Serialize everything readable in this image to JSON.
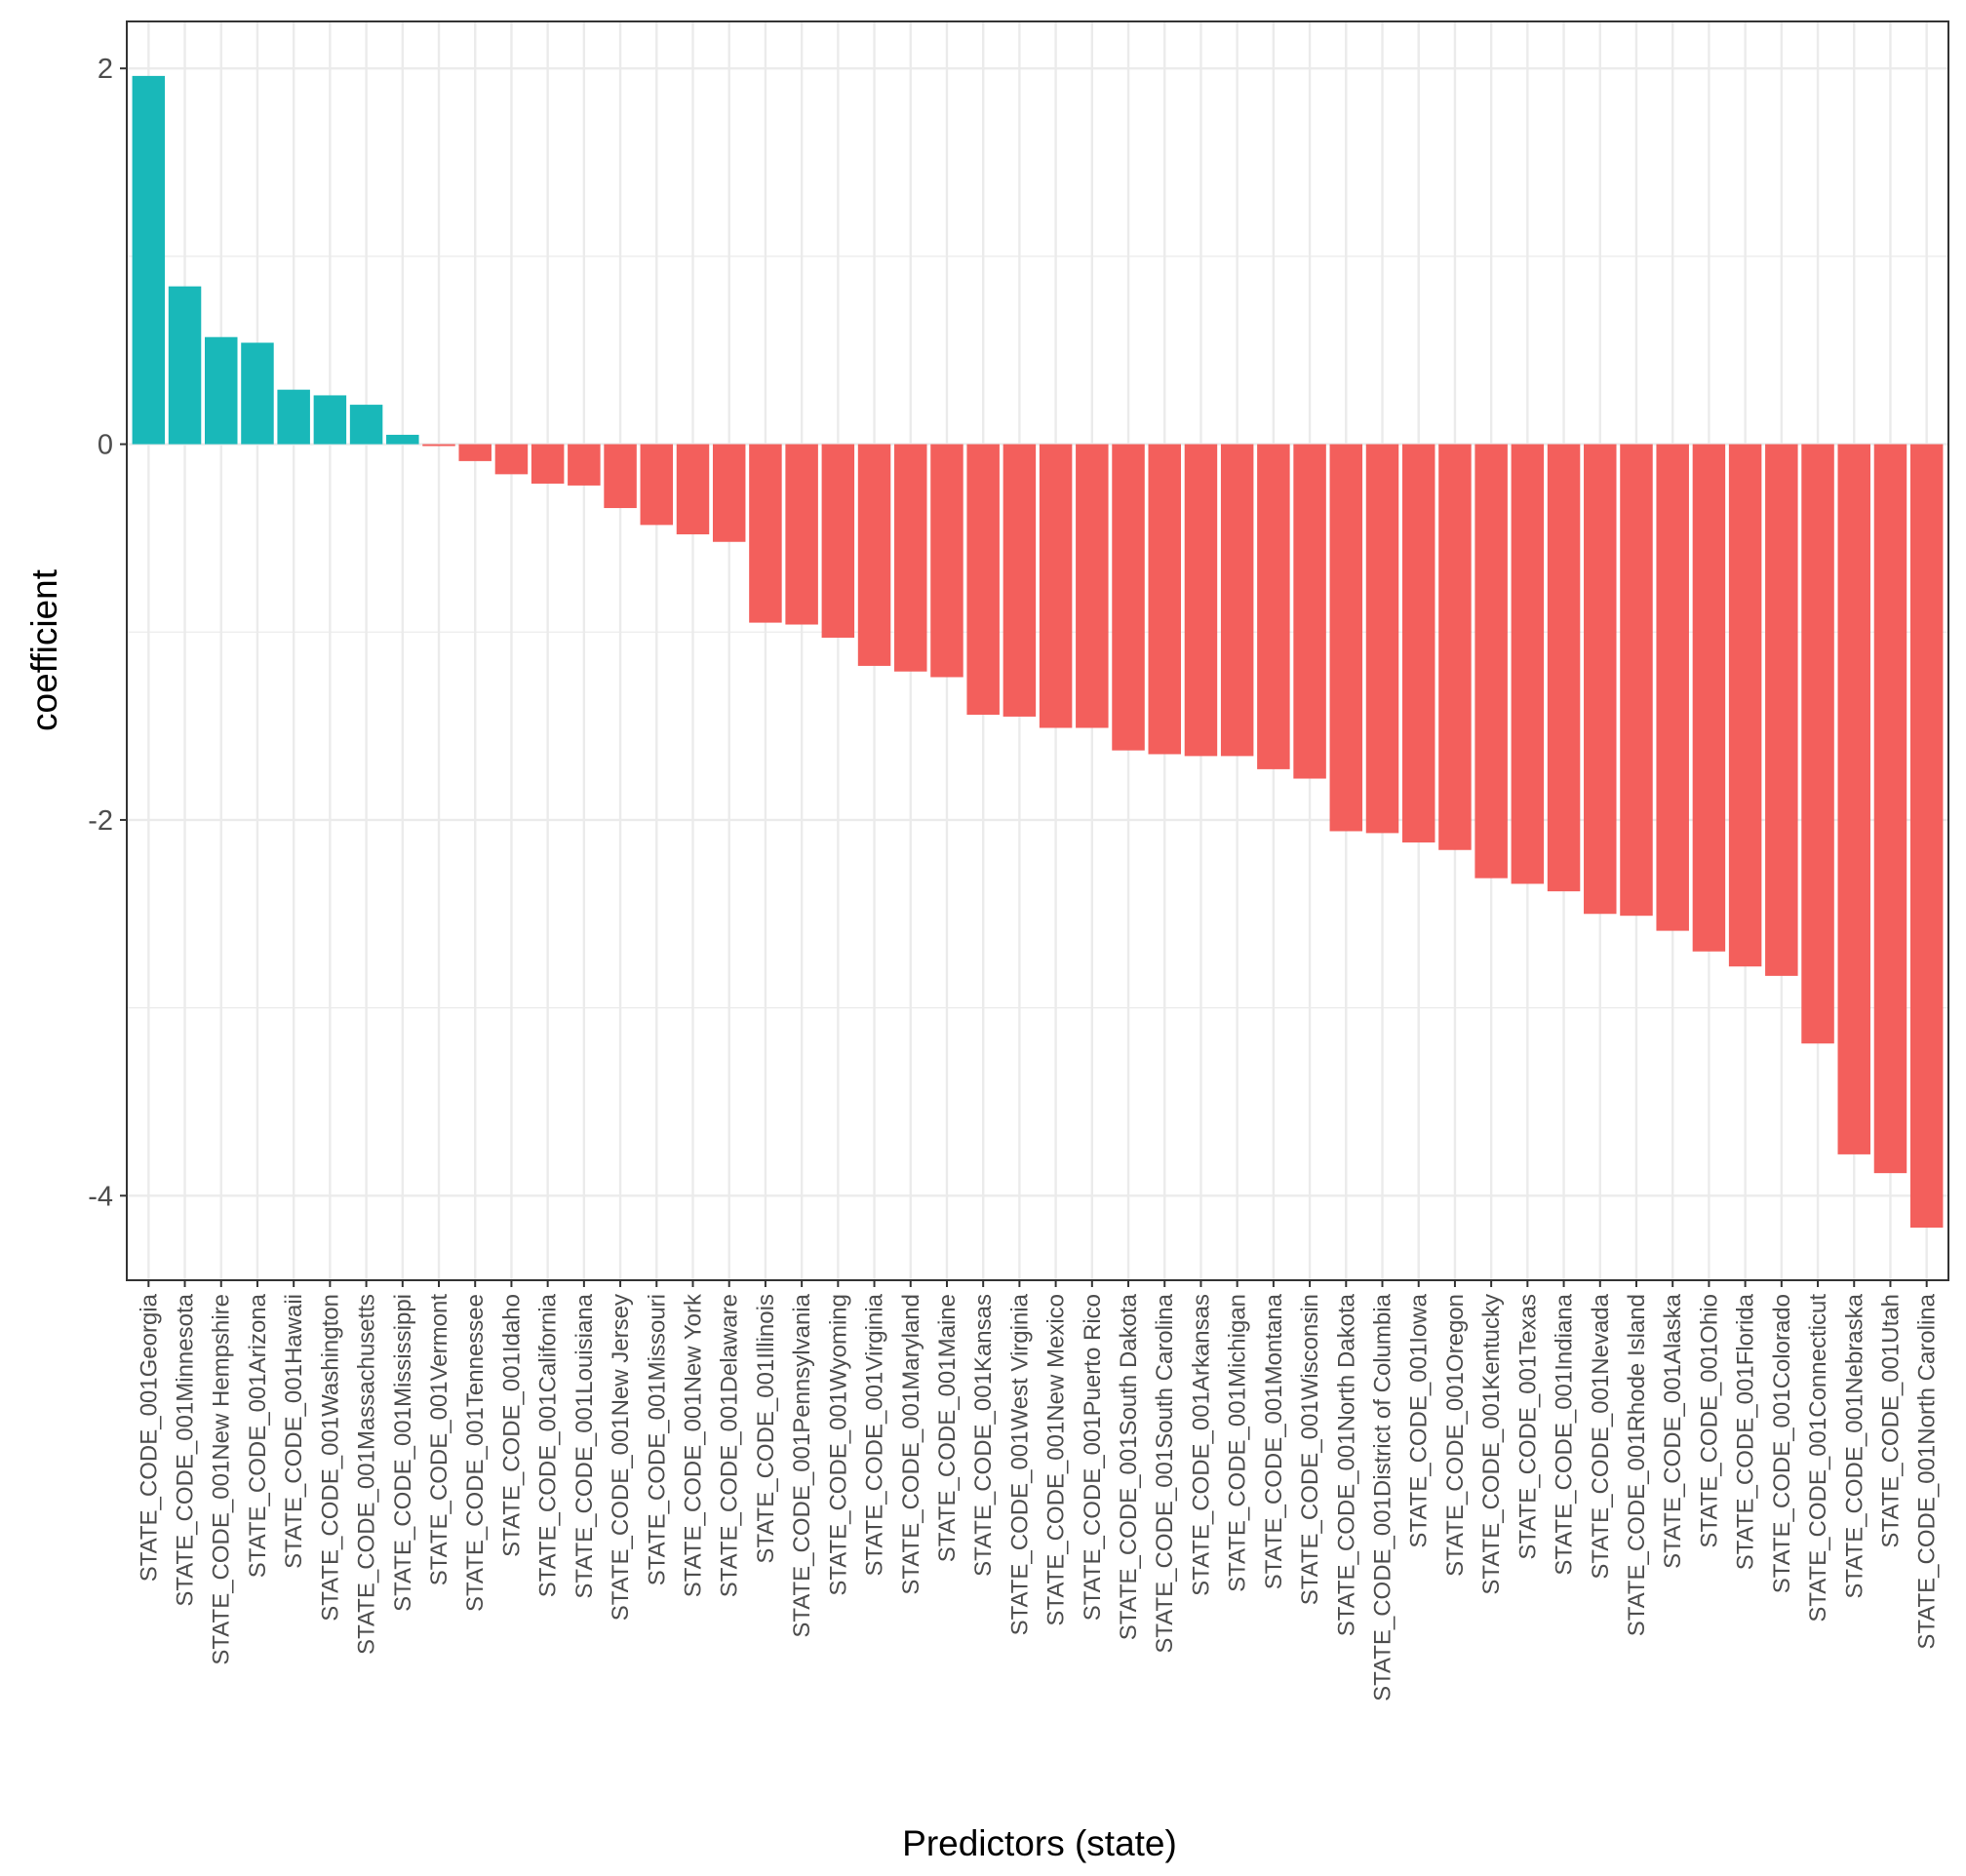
{
  "chart_data": {
    "type": "bar",
    "xlabel": "Predictors (state)",
    "ylabel": "coefficient",
    "ylim": [
      -4.45,
      2.25
    ],
    "yticks": [
      2,
      0,
      -2,
      -4
    ],
    "ytick_labels": [
      "2",
      "0",
      "-2",
      "-4"
    ],
    "grid": true,
    "legend": "none",
    "colors": {
      "positive": "#19B8B9",
      "negative": "#F35F5C",
      "grid": "#EBEBEB",
      "axis": "#333333"
    },
    "categories": [
      "STATE_CODE_001Georgia",
      "STATE_CODE_001Minnesota",
      "STATE_CODE_001New Hempshire",
      "STATE_CODE_001Arizona",
      "STATE_CODE_001Hawaii",
      "STATE_CODE_001Washington",
      "STATE_CODE_001Massachusetts",
      "STATE_CODE_001Mississippi",
      "STATE_CODE_001Vermont",
      "STATE_CODE_001Tennessee",
      "STATE_CODE_001Idaho",
      "STATE_CODE_001California",
      "STATE_CODE_001Louisiana",
      "STATE_CODE_001New Jersey",
      "STATE_CODE_001Missouri",
      "STATE_CODE_001New York",
      "STATE_CODE_001Delaware",
      "STATE_CODE_001Illinois",
      "STATE_CODE_001Pennsylvania",
      "STATE_CODE_001Wyoming",
      "STATE_CODE_001Virginia",
      "STATE_CODE_001Maryland",
      "STATE_CODE_001Maine",
      "STATE_CODE_001Kansas",
      "STATE_CODE_001West Virginia",
      "STATE_CODE_001New Mexico",
      "STATE_CODE_001Puerto Rico",
      "STATE_CODE_001South Dakota",
      "STATE_CODE_001South Carolina",
      "STATE_CODE_001Arkansas",
      "STATE_CODE_001Michigan",
      "STATE_CODE_001Montana",
      "STATE_CODE_001Wisconsin",
      "STATE_CODE_001North Dakota",
      "STATE_CODE_001District of Columbia",
      "STATE_CODE_001Iowa",
      "STATE_CODE_001Oregon",
      "STATE_CODE_001Kentucky",
      "STATE_CODE_001Texas",
      "STATE_CODE_001Indiana",
      "STATE_CODE_001Nevada",
      "STATE_CODE_001Rhode Island",
      "STATE_CODE_001Alaska",
      "STATE_CODE_001Ohio",
      "STATE_CODE_001Florida",
      "STATE_CODE_001Colorado",
      "STATE_CODE_001Connecticut",
      "STATE_CODE_001Nebraska",
      "STATE_CODE_001Utah",
      "STATE_CODE_001North Carolina"
    ],
    "values": [
      1.96,
      0.84,
      0.57,
      0.54,
      0.29,
      0.26,
      0.21,
      0.05,
      -0.01,
      -0.09,
      -0.16,
      -0.21,
      -0.22,
      -0.34,
      -0.43,
      -0.48,
      -0.52,
      -0.95,
      -0.96,
      -1.03,
      -1.18,
      -1.21,
      -1.24,
      -1.44,
      -1.45,
      -1.51,
      -1.51,
      -1.63,
      -1.65,
      -1.66,
      -1.66,
      -1.73,
      -1.78,
      -2.06,
      -2.07,
      -2.12,
      -2.16,
      -2.31,
      -2.34,
      -2.38,
      -2.5,
      -2.51,
      -2.59,
      -2.7,
      -2.78,
      -2.83,
      -3.19,
      -3.78,
      -3.88,
      -4.17
    ]
  }
}
